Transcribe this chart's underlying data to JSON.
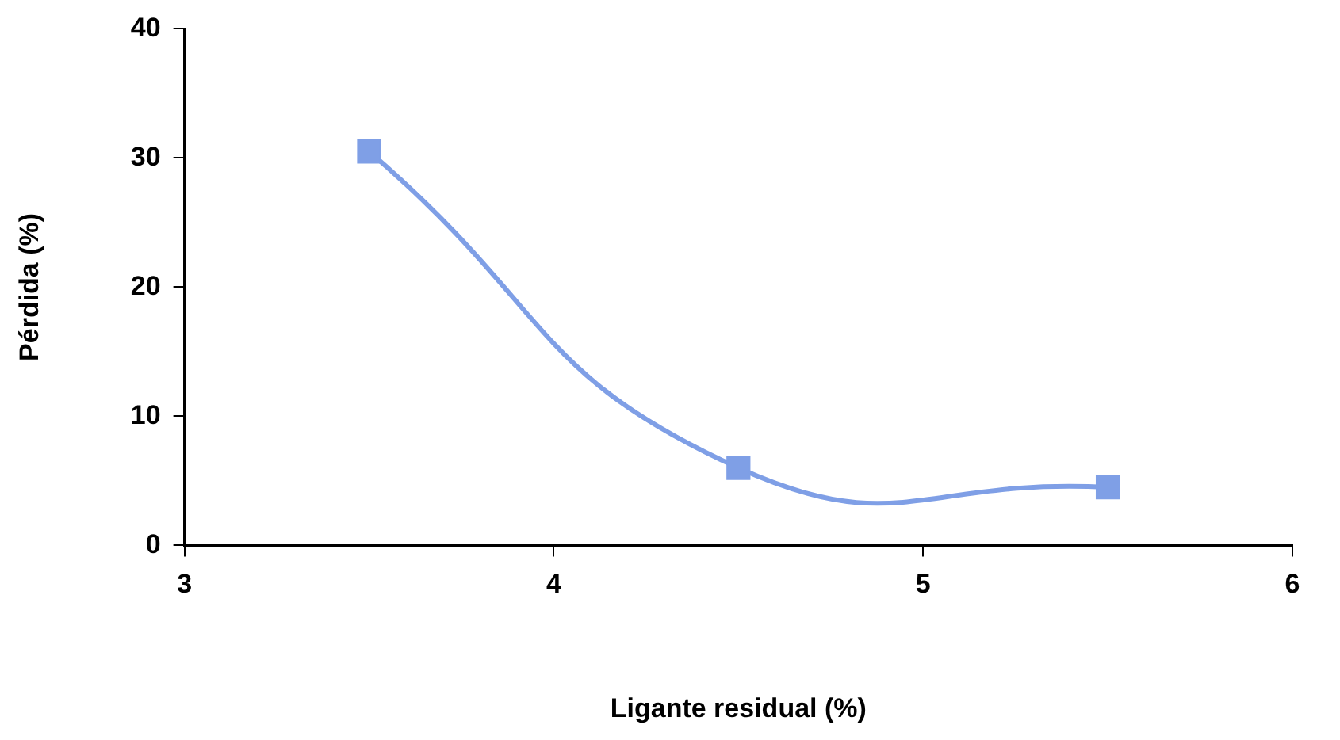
{
  "chart_data": {
    "type": "line",
    "xlabel": "Ligante residual (%)",
    "ylabel": "Pérdida (%)",
    "x": [
      3.5,
      4.5,
      5.5
    ],
    "series": [
      {
        "color": "#7f9fe6",
        "values": [
          30.5,
          6,
          4.5
        ]
      }
    ],
    "xlim": [
      3,
      6
    ],
    "xticks": [
      3,
      4,
      5,
      6
    ],
    "ylim": [
      0,
      40
    ],
    "yticks": [
      0,
      10,
      20,
      30,
      40
    ],
    "grid": false,
    "legend": false,
    "marker": "square",
    "line_style": "solid"
  }
}
